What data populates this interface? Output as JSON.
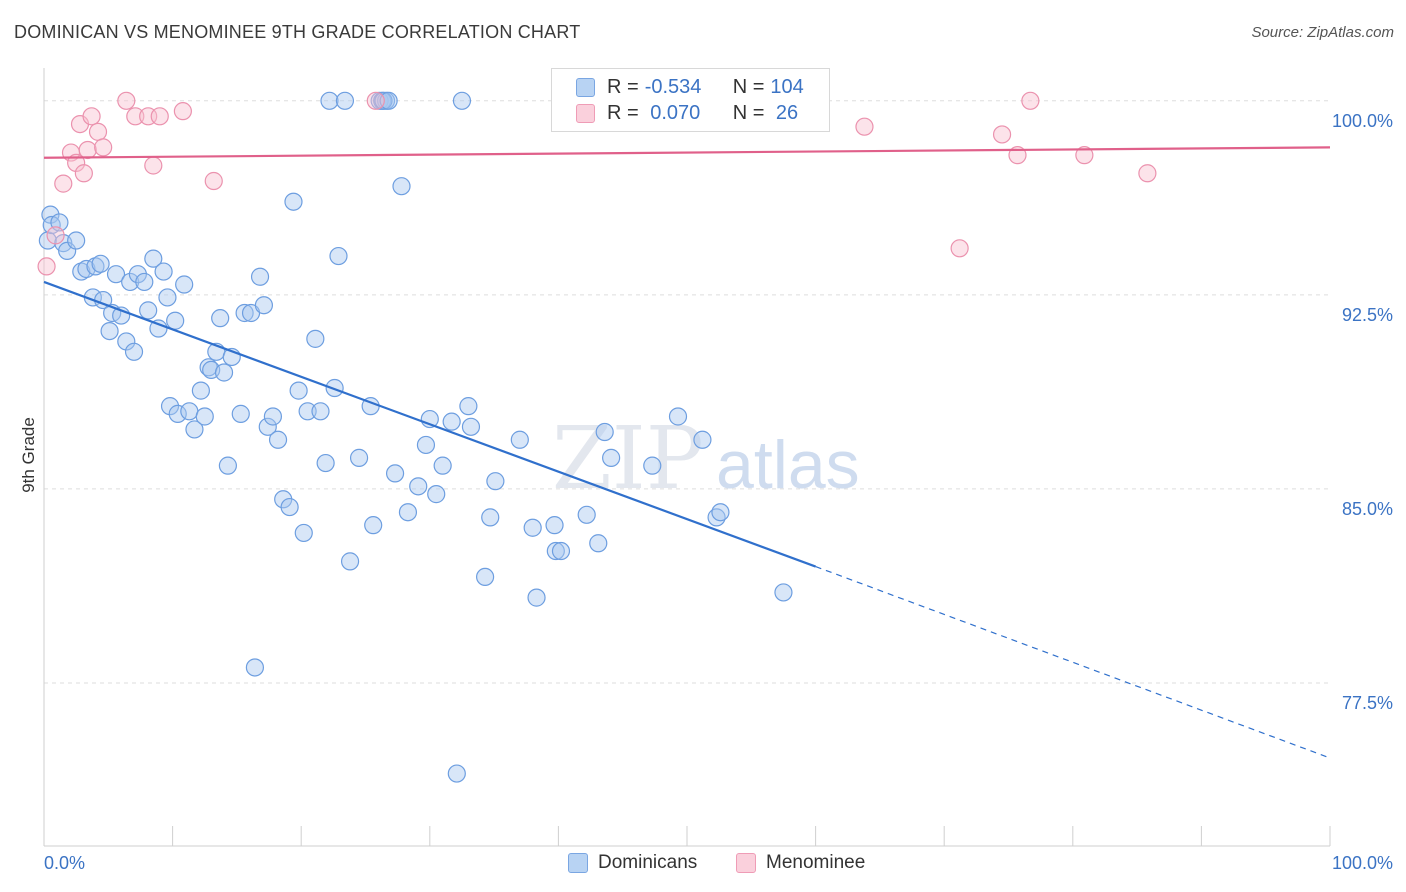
{
  "header": {
    "title": "DOMINICAN VS MENOMINEE 9TH GRADE CORRELATION CHART",
    "source": "Source: ZipAtlas.com"
  },
  "legend": {
    "series": [
      {
        "r_label": "R = ",
        "r_value": "-0.534",
        "n_label": "N = ",
        "n_value": "104"
      },
      {
        "r_label": "R = ",
        "r_value": " 0.070",
        "n_label": "N = ",
        "n_value": " 26"
      }
    ]
  },
  "bottom_legend": [
    "Dominicans",
    "Menominee"
  ],
  "watermark": {
    "zip": "ZIP",
    "atlas": "atlas"
  },
  "chart_data": {
    "type": "scatter",
    "ylabel": "9th Grade",
    "xlim": [
      0,
      100
    ],
    "ylim": [
      71.2,
      101.5
    ],
    "x_tick_labels": [
      "0.0%",
      "100.0%"
    ],
    "y_ticks": [
      {
        "value": 100.0,
        "label": "100.0%"
      },
      {
        "value": 92.5,
        "label": "92.5%"
      },
      {
        "value": 85.0,
        "label": "85.0%"
      },
      {
        "value": 77.5,
        "label": "77.5%"
      }
    ],
    "grid": true,
    "colors": {
      "dominicans_fill": "#a8c8f0",
      "dominicans_stroke": "#6d9ee0",
      "dominicans_line": "#3070cc",
      "menominee_fill": "#f8c0d0",
      "menominee_stroke": "#eb92ae",
      "menominee_line": "#e0608a",
      "tick_text": "#3b73c4"
    },
    "series": [
      {
        "name": "Dominicans",
        "trend": {
          "x0": 0,
          "y0": 93.0,
          "x1": 60,
          "y1": 82.0,
          "x_dash_end": 100,
          "y_dash_end": 74.6
        },
        "points": [
          [
            0.3,
            94.6
          ],
          [
            0.5,
            95.6
          ],
          [
            0.6,
            95.2
          ],
          [
            1.2,
            95.3
          ],
          [
            1.5,
            94.5
          ],
          [
            1.8,
            94.2
          ],
          [
            2.5,
            94.6
          ],
          [
            2.9,
            93.4
          ],
          [
            3.3,
            93.5
          ],
          [
            3.8,
            92.4
          ],
          [
            4.0,
            93.6
          ],
          [
            4.4,
            93.7
          ],
          [
            4.6,
            92.3
          ],
          [
            5.1,
            91.1
          ],
          [
            5.3,
            91.8
          ],
          [
            5.6,
            93.3
          ],
          [
            6.0,
            91.7
          ],
          [
            6.4,
            90.7
          ],
          [
            6.7,
            93.0
          ],
          [
            7.0,
            90.3
          ],
          [
            7.3,
            93.3
          ],
          [
            7.8,
            93.0
          ],
          [
            8.1,
            91.9
          ],
          [
            8.5,
            93.9
          ],
          [
            8.9,
            91.2
          ],
          [
            9.3,
            93.4
          ],
          [
            9.6,
            92.4
          ],
          [
            9.8,
            88.2
          ],
          [
            10.2,
            91.5
          ],
          [
            10.4,
            87.9
          ],
          [
            10.9,
            92.9
          ],
          [
            11.3,
            88.0
          ],
          [
            11.7,
            87.3
          ],
          [
            12.2,
            88.8
          ],
          [
            12.5,
            87.8
          ],
          [
            12.8,
            89.7
          ],
          [
            13.0,
            89.6
          ],
          [
            13.4,
            90.3
          ],
          [
            13.7,
            91.6
          ],
          [
            14.0,
            89.5
          ],
          [
            14.3,
            85.9
          ],
          [
            14.6,
            90.1
          ],
          [
            15.3,
            87.9
          ],
          [
            15.6,
            91.8
          ],
          [
            16.1,
            91.8
          ],
          [
            16.4,
            78.1
          ],
          [
            16.8,
            93.2
          ],
          [
            17.1,
            92.1
          ],
          [
            17.4,
            87.4
          ],
          [
            17.8,
            87.8
          ],
          [
            18.2,
            86.9
          ],
          [
            18.6,
            84.6
          ],
          [
            19.1,
            84.3
          ],
          [
            19.4,
            96.1
          ],
          [
            19.8,
            88.8
          ],
          [
            20.2,
            83.3
          ],
          [
            20.5,
            88.0
          ],
          [
            21.1,
            90.8
          ],
          [
            21.5,
            88.0
          ],
          [
            21.9,
            86.0
          ],
          [
            22.2,
            100.0
          ],
          [
            22.6,
            88.9
          ],
          [
            22.9,
            94.0
          ],
          [
            23.4,
            100.0
          ],
          [
            23.8,
            82.2
          ],
          [
            24.5,
            86.2
          ],
          [
            25.4,
            88.2
          ],
          [
            25.6,
            83.6
          ],
          [
            26.1,
            100.0
          ],
          [
            26.3,
            100.0
          ],
          [
            26.6,
            100.0
          ],
          [
            26.4,
            100.0
          ],
          [
            26.8,
            100.0
          ],
          [
            27.3,
            85.6
          ],
          [
            27.8,
            96.7
          ],
          [
            28.3,
            84.1
          ],
          [
            29.1,
            85.1
          ],
          [
            29.7,
            86.7
          ],
          [
            30.0,
            87.7
          ],
          [
            30.5,
            84.8
          ],
          [
            31.0,
            85.9
          ],
          [
            31.7,
            87.6
          ],
          [
            32.1,
            74.0
          ],
          [
            32.5,
            100.0
          ],
          [
            33.0,
            88.2
          ],
          [
            33.2,
            87.4
          ],
          [
            34.3,
            81.6
          ],
          [
            34.7,
            83.9
          ],
          [
            35.1,
            85.3
          ],
          [
            37.0,
            86.9
          ],
          [
            38.0,
            83.5
          ],
          [
            38.3,
            80.8
          ],
          [
            39.7,
            83.6
          ],
          [
            39.8,
            82.6
          ],
          [
            40.2,
            82.6
          ],
          [
            42.2,
            84.0
          ],
          [
            43.1,
            82.9
          ],
          [
            43.6,
            87.2
          ],
          [
            44.1,
            86.2
          ],
          [
            47.3,
            85.9
          ],
          [
            49.3,
            87.8
          ],
          [
            51.2,
            86.9
          ],
          [
            52.3,
            83.9
          ],
          [
            52.6,
            84.1
          ],
          [
            57.5,
            81.0
          ]
        ]
      },
      {
        "name": "Menominee",
        "trend": {
          "x0": 0,
          "y0": 97.8,
          "x1": 100,
          "y1": 98.2
        },
        "points": [
          [
            0.2,
            93.6
          ],
          [
            0.9,
            94.8
          ],
          [
            1.5,
            96.8
          ],
          [
            2.1,
            98.0
          ],
          [
            2.5,
            97.6
          ],
          [
            2.8,
            99.1
          ],
          [
            3.1,
            97.2
          ],
          [
            3.4,
            98.1
          ],
          [
            3.7,
            99.4
          ],
          [
            4.2,
            98.8
          ],
          [
            4.6,
            98.2
          ],
          [
            6.4,
            100.0
          ],
          [
            7.1,
            99.4
          ],
          [
            8.1,
            99.4
          ],
          [
            8.5,
            97.5
          ],
          [
            9.0,
            99.4
          ],
          [
            10.8,
            99.6
          ],
          [
            13.2,
            96.9
          ],
          [
            25.8,
            100.0
          ],
          [
            63.8,
            99.0
          ],
          [
            71.2,
            94.3
          ],
          [
            74.5,
            98.7
          ],
          [
            75.7,
            97.9
          ],
          [
            76.7,
            100.0
          ],
          [
            80.9,
            97.9
          ],
          [
            85.8,
            97.2
          ]
        ]
      }
    ]
  }
}
